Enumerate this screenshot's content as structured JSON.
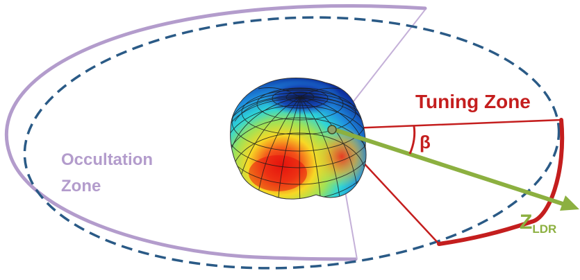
{
  "labels": {
    "occultation_line1": "Occultation",
    "occultation_line2": "Zone",
    "tuning_zone": "Tuning Zone",
    "beta": "β",
    "z_main": "Z",
    "z_sub": "LDR"
  },
  "colors": {
    "occultation": "#b39ccc",
    "orbit_dashed": "#2a5a86",
    "tuning": "#c41e1e",
    "axis": "#8cb040"
  }
}
